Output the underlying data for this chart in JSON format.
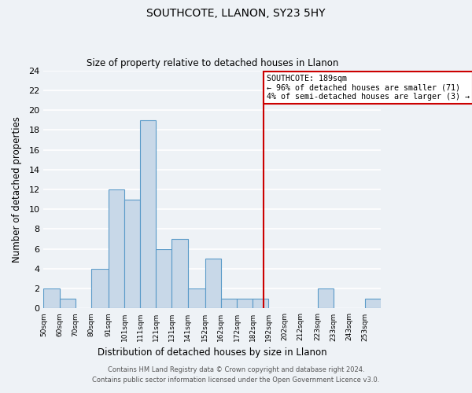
{
  "title": "SOUTHCOTE, LLANON, SY23 5HY",
  "subtitle": "Size of property relative to detached houses in Llanon",
  "xlabel": "Distribution of detached houses by size in Llanon",
  "ylabel": "Number of detached properties",
  "bin_labels": [
    "50sqm",
    "60sqm",
    "70sqm",
    "80sqm",
    "91sqm",
    "101sqm",
    "111sqm",
    "121sqm",
    "131sqm",
    "141sqm",
    "152sqm",
    "162sqm",
    "172sqm",
    "182sqm",
    "192sqm",
    "202sqm",
    "212sqm",
    "223sqm",
    "233sqm",
    "243sqm",
    "253sqm"
  ],
  "bin_edges": [
    50,
    60,
    70,
    80,
    91,
    101,
    111,
    121,
    131,
    141,
    152,
    162,
    172,
    182,
    192,
    202,
    212,
    223,
    233,
    243,
    253,
    263
  ],
  "counts": [
    2,
    1,
    0,
    4,
    12,
    11,
    19,
    6,
    7,
    2,
    5,
    1,
    1,
    1,
    0,
    0,
    0,
    2,
    0,
    0,
    1
  ],
  "bar_color": "#c8d8e8",
  "bar_edge_color": "#5a9ac8",
  "vline_x": 189,
  "vline_color": "#cc0000",
  "annotation_title": "SOUTHCOTE: 189sqm",
  "annotation_line1": "← 96% of detached houses are smaller (71)",
  "annotation_line2": "4% of semi-detached houses are larger (3) →",
  "annotation_box_color": "white",
  "annotation_box_edge": "#cc0000",
  "ylim": [
    0,
    24
  ],
  "yticks": [
    0,
    2,
    4,
    6,
    8,
    10,
    12,
    14,
    16,
    18,
    20,
    22,
    24
  ],
  "footer1": "Contains HM Land Registry data © Crown copyright and database right 2024.",
  "footer2": "Contains public sector information licensed under the Open Government Licence v3.0.",
  "bg_color": "#eef2f6",
  "grid_color": "#d8e0ea"
}
